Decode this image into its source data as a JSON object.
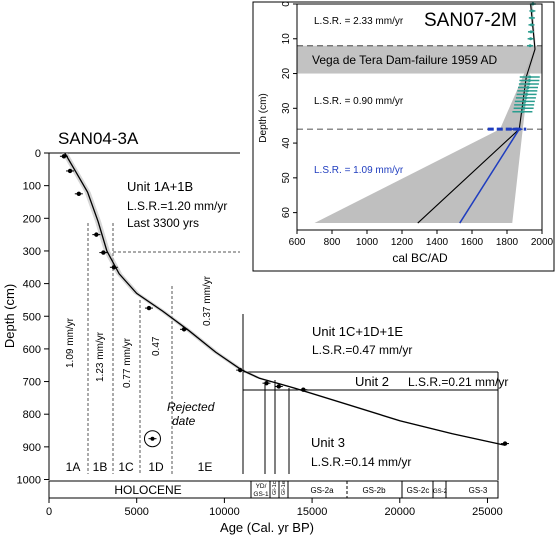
{
  "main": {
    "title": "SAN04-3A",
    "xlabel": "Age (Cal. yr BP)",
    "ylabel": "Depth (cm)",
    "x_ticks": [
      "0",
      "5000",
      "10000",
      "15000",
      "20000",
      "25000"
    ],
    "y_ticks": [
      "0",
      "100",
      "200",
      "300",
      "400",
      "500",
      "600",
      "700",
      "800",
      "900",
      "1000"
    ],
    "unit_1ab": {
      "name": "Unit 1A+1B",
      "lsr": "L.S.R.=1.20 mm/yr",
      "note": "Last 3300 yrs"
    },
    "unit_1cde": {
      "name": "Unit 1C+1D+1E",
      "lsr": "L.S.R.=0.47 mm/yr"
    },
    "unit_2": {
      "name": "Unit 2",
      "lsr": "L.S.R.=0.21 mm/yr"
    },
    "unit_3": {
      "name": "Unit 3",
      "lsr": "L.S.R.=0.14 mm/yr"
    },
    "sub_rates": [
      "1.09 mm/yr",
      "1.23 mm/yr",
      "0.77 mm/yr",
      "0.47",
      "0.37 mm/yr"
    ],
    "sub_units": [
      "1A",
      "1B",
      "1C",
      "1D",
      "1E"
    ],
    "rejected": "Rejected date",
    "holocene": "HOLOCENE",
    "stadials": [
      "YD/ GS-1",
      "GI-1c",
      "GI-1e",
      "GS-2a",
      "GS-2b",
      "GS-2c",
      "GS-2",
      "GS-3"
    ]
  },
  "inset": {
    "title": "SAN07-2M",
    "xlabel": "cal BC/AD",
    "ylabel": "Depth (cm)",
    "x_ticks": [
      "600",
      "800",
      "1000",
      "1200",
      "1400",
      "1600",
      "1800",
      "2000"
    ],
    "y_ticks": [
      "0",
      "10",
      "20",
      "30",
      "40",
      "50",
      "60"
    ],
    "lsr_top": "L.S.R. = 2.33 mm/yr",
    "event": "Vega de Tera Dam-failure 1959 AD",
    "lsr_mid": "L.S.R. = 0.90 mm/yr",
    "lsr_bottom": "L.S.R. = 1.09 mm/yr"
  },
  "chart_data": [
    {
      "type": "line",
      "title": "SAN04-3A",
      "xlabel": "Age (Cal. yr BP)",
      "ylabel": "Depth (cm)",
      "xlim": [
        0,
        27000
      ],
      "ylim": [
        1000,
        0
      ],
      "age_model": {
        "x": [
          900,
          1500,
          2200,
          2800,
          3300,
          4000,
          5000,
          6500,
          8000,
          9500,
          11000,
          12000,
          13000,
          14000,
          17000,
          20000,
          23000,
          26000
        ],
        "y": [
          0,
          55,
          120,
          210,
          300,
          370,
          430,
          485,
          545,
          610,
          665,
          690,
          705,
          720,
          770,
          820,
          860,
          895
        ]
      },
      "dates": {
        "x": [
          850,
          1200,
          1700,
          2700,
          3100,
          3700,
          5700,
          7700,
          10900,
          12400,
          13100,
          14500,
          26000
        ],
        "y": [
          10,
          55,
          125,
          250,
          305,
          350,
          475,
          540,
          665,
          705,
          715,
          725,
          890
        ]
      },
      "rejected_date": {
        "x": 5900,
        "y": 875
      },
      "colors": {
        "line": "#000000",
        "envelope": "#bbbbbb"
      }
    },
    {
      "type": "line",
      "title": "SAN07-2M",
      "xlabel": "cal BC/AD",
      "ylabel": "Depth (cm)",
      "xlim": [
        600,
        2000
      ],
      "ylim": [
        65,
        0
      ],
      "median": {
        "x": [
          1935,
          1960,
          1910,
          1870,
          1290
        ],
        "y": [
          0,
          13,
          21,
          36,
          63
        ]
      },
      "blue_model": {
        "x": [
          1870,
          1530
        ],
        "y": [
          36,
          63
        ]
      },
      "envelope_min": {
        "x": [
          1930,
          1955,
          1890,
          1760,
          700
        ],
        "y": [
          0,
          13,
          21,
          36,
          63
        ]
      },
      "envelope_max": {
        "x": [
          1945,
          1965,
          1925,
          1890,
          1830
        ],
        "y": [
          0,
          13,
          21,
          36,
          63
        ]
      },
      "dam_failure_band": [
        12,
        20
      ],
      "boundaries_depth": [
        12,
        36
      ],
      "samples": {
        "x": [
          1948,
          1945,
          1942,
          1940,
          1937,
          1935,
          1932,
          1930,
          1928,
          1925,
          1920,
          1916,
          1912,
          1908,
          1902,
          1898,
          1895,
          1888,
          1870,
          1855,
          1840
        ],
        "y": [
          0,
          2,
          4,
          6,
          8,
          10,
          12,
          21,
          22,
          23,
          24,
          25,
          26,
          27,
          28,
          29,
          30,
          31,
          36,
          36,
          36
        ]
      },
      "colors": {
        "median": "#000000",
        "blue": "#1f3dbf",
        "envelope": "#b8b8b8",
        "samples": "#2a9d8f",
        "dashed_samples": "#1f3dbf"
      }
    }
  ]
}
